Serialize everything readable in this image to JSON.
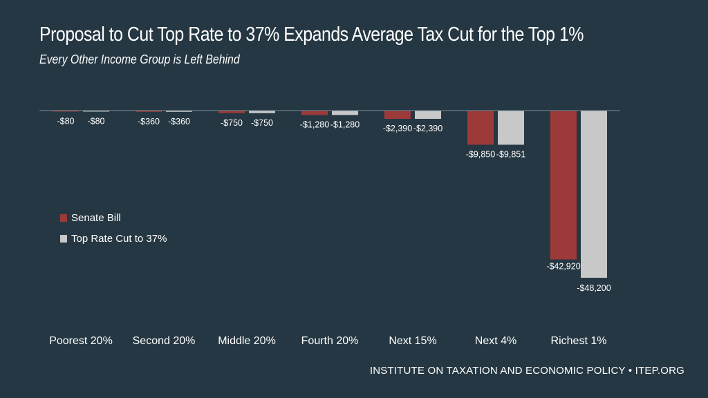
{
  "header": {
    "title": "Proposal to Cut Top Rate to 37% Expands Average Tax Cut for the Top 1%",
    "subtitle": "Every Other Income Group is Left Behind"
  },
  "footer": {
    "source": "INSTITUTE ON TAXATION AND ECONOMIC POLICY • ITEP.ORG"
  },
  "colors": {
    "background": "#253742",
    "senate": "#9b3a38",
    "toprate": "#c8c8c8",
    "axis": "#6a7f8a",
    "text": "#ffffff"
  },
  "chart_data": {
    "type": "bar",
    "title": "Proposal to Cut Top Rate to 37% Expands Average Tax Cut for the Top 1%",
    "subtitle": "Every Other Income Group is Left Behind",
    "xlabel": "",
    "ylabel": "",
    "ylim": [
      -48200,
      0
    ],
    "grid": false,
    "legend_position": "left-middle",
    "categories": [
      "Poorest 20%",
      "Second 20%",
      "Middle 20%",
      "Fourth 20%",
      "Next 15%",
      "Next 4%",
      "Richest 1%"
    ],
    "series": [
      {
        "name": "Senate Bill",
        "color": "#9b3a38",
        "values": [
          -80,
          -360,
          -750,
          -1280,
          -2390,
          -9850,
          -42920
        ],
        "labels": [
          "-$80",
          "-$360",
          "-$750",
          "-$1,280",
          "-$2,390",
          "-$9,850",
          "-$42,920"
        ]
      },
      {
        "name": "Top Rate Cut to 37%",
        "color": "#c8c8c8",
        "values": [
          -80,
          -360,
          -750,
          -1280,
          -2390,
          -9851,
          -48200
        ],
        "labels": [
          "-$80",
          "-$360",
          "-$750",
          "-$1,280",
          "-$2,390",
          "-$9,851",
          "-$48,200"
        ]
      }
    ]
  }
}
